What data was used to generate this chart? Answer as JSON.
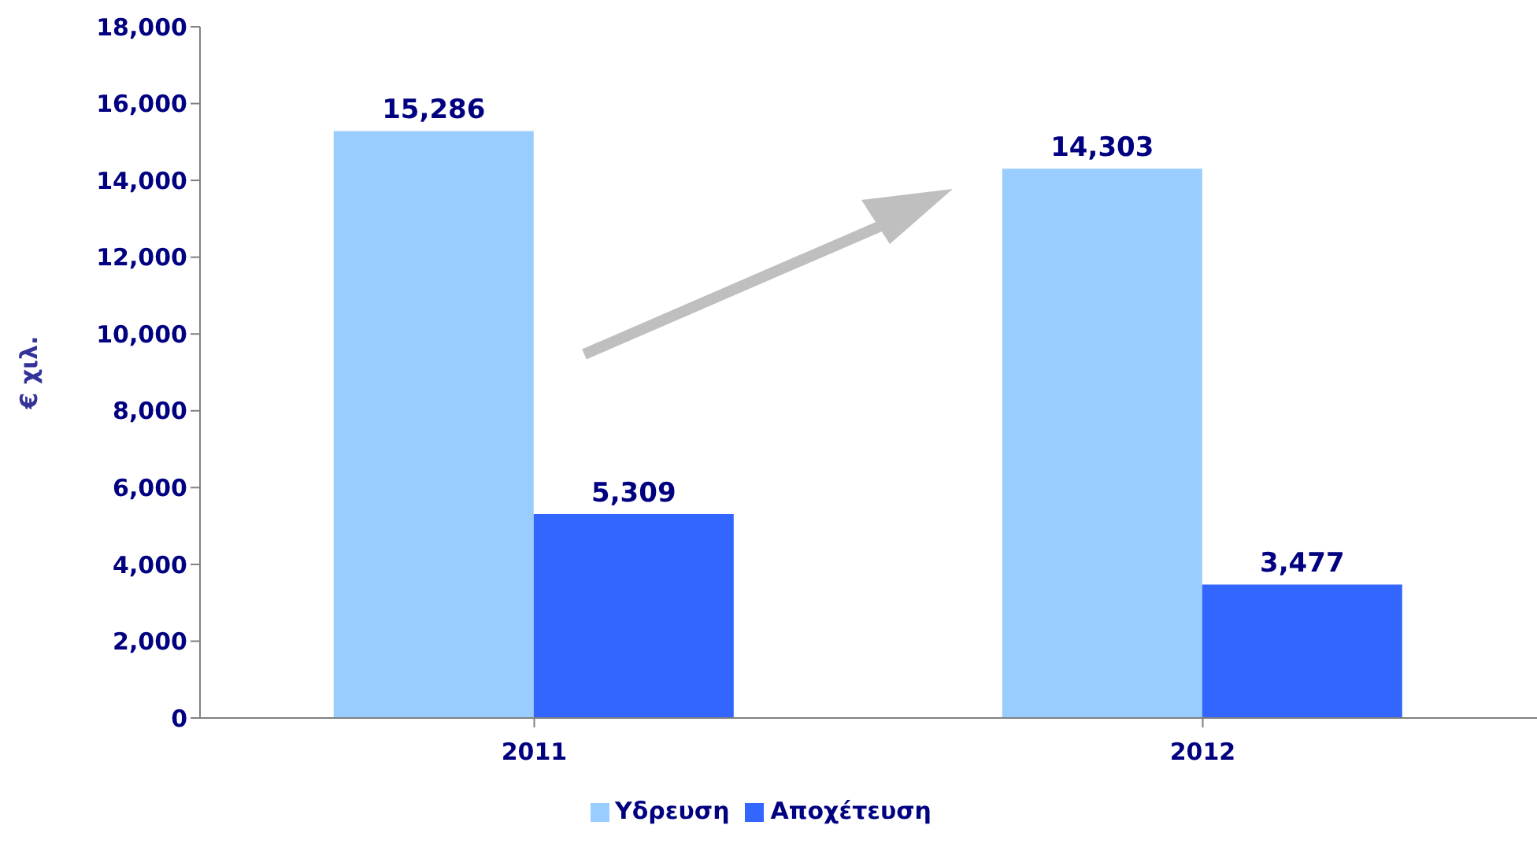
{
  "chart_data": {
    "type": "bar",
    "ylabel": "€ χιλ.",
    "categories": [
      "2011",
      "2012"
    ],
    "series": [
      {
        "name": "Υδρευση",
        "color": "#99ccff",
        "values": [
          15286,
          14303
        ],
        "value_labels": [
          "15,286",
          "14,303"
        ]
      },
      {
        "name": "Αποχέτευση",
        "color": "#3366ff",
        "values": [
          5309,
          3477
        ],
        "value_labels": [
          "5,309",
          "3,477"
        ]
      }
    ],
    "ylim": [
      0,
      18000
    ],
    "yticks": [
      0,
      {
        "value": 2000,
        "label": "2,000"
      },
      {
        "value": 4000,
        "label": "4,000"
      },
      {
        "value": 6000,
        "label": "6,000"
      },
      {
        "value": 8000,
        "label": "8,000"
      },
      {
        "value": 10000,
        "label": "10,000"
      },
      {
        "value": 12000,
        "label": "12,000"
      },
      {
        "value": 14000,
        "label": "14,000"
      },
      {
        "value": 16000,
        "label": "16,000"
      },
      {
        "value": 18000,
        "label": "18,000"
      }
    ],
    "grid": false,
    "legend": "bottom"
  }
}
